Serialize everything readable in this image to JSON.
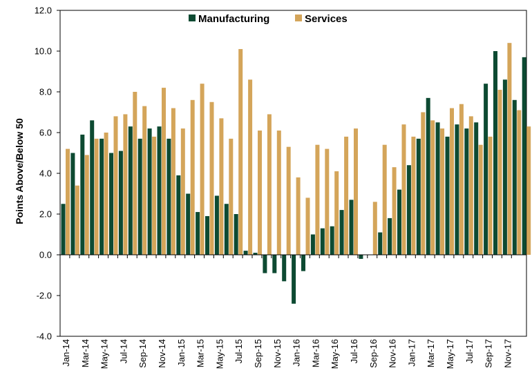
{
  "chart_data": {
    "type": "bar",
    "title": "",
    "xlabel": "",
    "ylabel": "Points Above/Below 50",
    "ylim": [
      -4.0,
      12.0
    ],
    "yticks": [
      "12.0",
      "10.0",
      "8.0",
      "6.0",
      "4.0",
      "2.0",
      "0.0",
      "-2.0",
      "-4.0"
    ],
    "legend_position": "top-center",
    "grid": false,
    "categories": [
      "Jan-14",
      "Feb-14",
      "Mar-14",
      "Apr-14",
      "May-14",
      "Jun-14",
      "Jul-14",
      "Aug-14",
      "Sep-14",
      "Oct-14",
      "Nov-14",
      "Dec-14",
      "Jan-15",
      "Feb-15",
      "Mar-15",
      "Apr-15",
      "May-15",
      "Jun-15",
      "Jul-15",
      "Aug-15",
      "Sep-15",
      "Oct-15",
      "Nov-15",
      "Dec-15",
      "Jan-16",
      "Feb-16",
      "Mar-16",
      "Apr-16",
      "May-16",
      "Jun-16",
      "Jul-16",
      "Aug-16",
      "Sep-16",
      "Oct-16",
      "Nov-16",
      "Dec-16",
      "Jan-17",
      "Feb-17",
      "Mar-17",
      "Apr-17",
      "May-17",
      "Jun-17",
      "Jul-17",
      "Aug-17",
      "Sep-17",
      "Oct-17",
      "Nov-17",
      "Dec-17"
    ],
    "tick_labels": [
      "Jan-14",
      "Mar-14",
      "May-14",
      "Jul-14",
      "Sep-14",
      "Nov-14",
      "Jan-15",
      "Mar-15",
      "May-15",
      "Jul-15",
      "Sep-15",
      "Nov-15",
      "Jan-16",
      "Mar-16",
      "May-16",
      "Jul-16",
      "Sep-16",
      "Nov-16",
      "Jan-17",
      "Mar-17",
      "May-17",
      "Jul-17",
      "Sep-17",
      "Nov-17"
    ],
    "series": [
      {
        "name": "Manufacturing",
        "color": "#0d4a32",
        "values": [
          2.5,
          5.0,
          5.9,
          6.6,
          5.7,
          5.0,
          5.1,
          6.3,
          5.7,
          6.2,
          6.3,
          5.7,
          3.9,
          3.0,
          2.1,
          1.9,
          2.9,
          2.5,
          2.0,
          0.2,
          0.1,
          -0.9,
          -0.9,
          -1.3,
          -2.4,
          -0.8,
          1.0,
          1.3,
          1.4,
          2.2,
          2.7,
          -0.2,
          0.0,
          1.1,
          1.8,
          3.2,
          4.4,
          5.7,
          7.7,
          6.5,
          5.8,
          6.4,
          6.2,
          6.5,
          8.4,
          10.0,
          8.6,
          7.6
        ]
      },
      {
        "name": "Services",
        "color": "#d4a55a",
        "values": [
          5.2,
          3.4,
          4.9,
          5.7,
          6.0,
          6.8,
          6.9,
          8.0,
          7.3,
          5.8,
          8.2,
          7.2,
          6.2,
          7.6,
          8.4,
          7.5,
          6.7,
          5.7,
          10.1,
          8.6,
          6.1,
          6.9,
          6.1,
          5.3,
          3.8,
          2.8,
          5.4,
          5.2,
          4.1,
          5.8,
          6.2,
          0.0,
          2.6,
          5.4,
          4.3,
          6.4,
          5.8,
          7.0,
          6.6,
          6.2,
          7.2,
          7.4,
          6.8,
          5.4,
          5.8,
          8.1,
          10.4,
          7.1
        ]
      }
    ],
    "trailing": {
      "Manufacturing": 9.7,
      "Services": 6.3
    }
  }
}
